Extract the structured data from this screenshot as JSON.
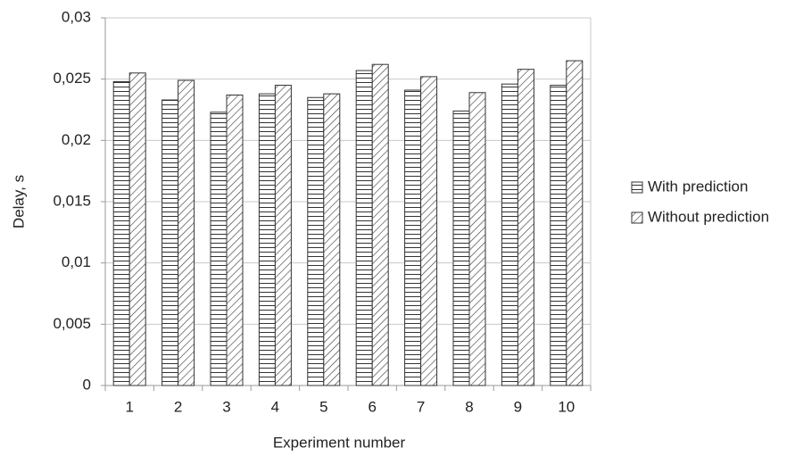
{
  "chart_data": {
    "type": "bar",
    "x_label": "Experiment number",
    "y_label": "Delay, s",
    "categories": [
      "1",
      "2",
      "3",
      "4",
      "5",
      "6",
      "7",
      "8",
      "9",
      "10"
    ],
    "series": [
      {
        "name": "With prediction",
        "color": "#333333",
        "pattern": "horizontal",
        "values": [
          0.0248,
          0.0233,
          0.0223,
          0.0238,
          0.0235,
          0.0257,
          0.0241,
          0.0224,
          0.0246,
          0.0245
        ]
      },
      {
        "name": "Without prediction",
        "color": "#333333",
        "pattern": "diagonal",
        "values": [
          0.0255,
          0.0249,
          0.0237,
          0.0245,
          0.0238,
          0.0262,
          0.0252,
          0.0239,
          0.0258,
          0.0265
        ]
      }
    ],
    "ylim": [
      0,
      0.03
    ],
    "yticks": [
      0,
      {
        "value": 0.005,
        "label": "0,005"
      },
      {
        "value": 0.01,
        "label": "0,01"
      },
      {
        "value": 0.015,
        "label": "0,015"
      },
      {
        "value": 0.02,
        "label": "0,02"
      },
      {
        "value": 0.025,
        "label": "0,025"
      },
      {
        "value": 0.03,
        "label": "0,03"
      }
    ],
    "grid": true,
    "legend": "right"
  }
}
